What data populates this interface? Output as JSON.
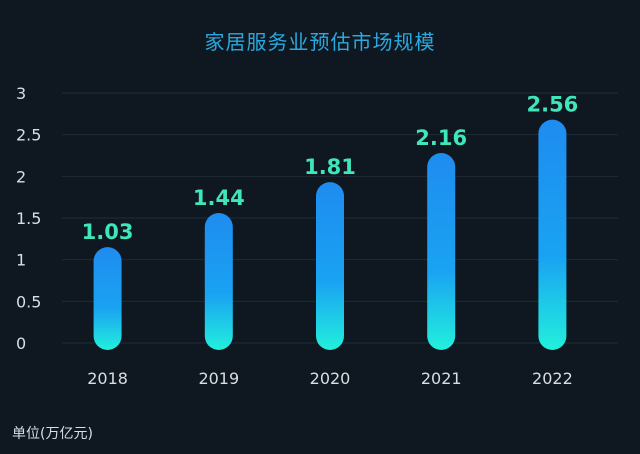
{
  "chart_data": {
    "type": "bar",
    "title": "家居服务业预估市场规模",
    "unit_label": "单位(万亿元)",
    "categories": [
      "2018",
      "2019",
      "2020",
      "2021",
      "2022"
    ],
    "values": [
      1.03,
      1.44,
      1.81,
      2.16,
      2.56
    ],
    "value_labels": [
      "1.03",
      "1.44",
      "1.81",
      "2.16",
      "2.56"
    ],
    "yticks": [
      "0",
      "0.5",
      "1",
      "1.5",
      "2",
      "2.5",
      "3"
    ],
    "ylim": [
      0,
      3
    ],
    "grid": true,
    "colors": {
      "background": "#0f1720",
      "bar_top": "#1e8cf0",
      "bar_mid": "#1aa3f2",
      "bar_bottom": "#22f0dc",
      "value_label": "#3ee6b8",
      "title": "#29a9e0",
      "axis_text": "#d9dee3",
      "grid": "#1e2c38"
    }
  }
}
